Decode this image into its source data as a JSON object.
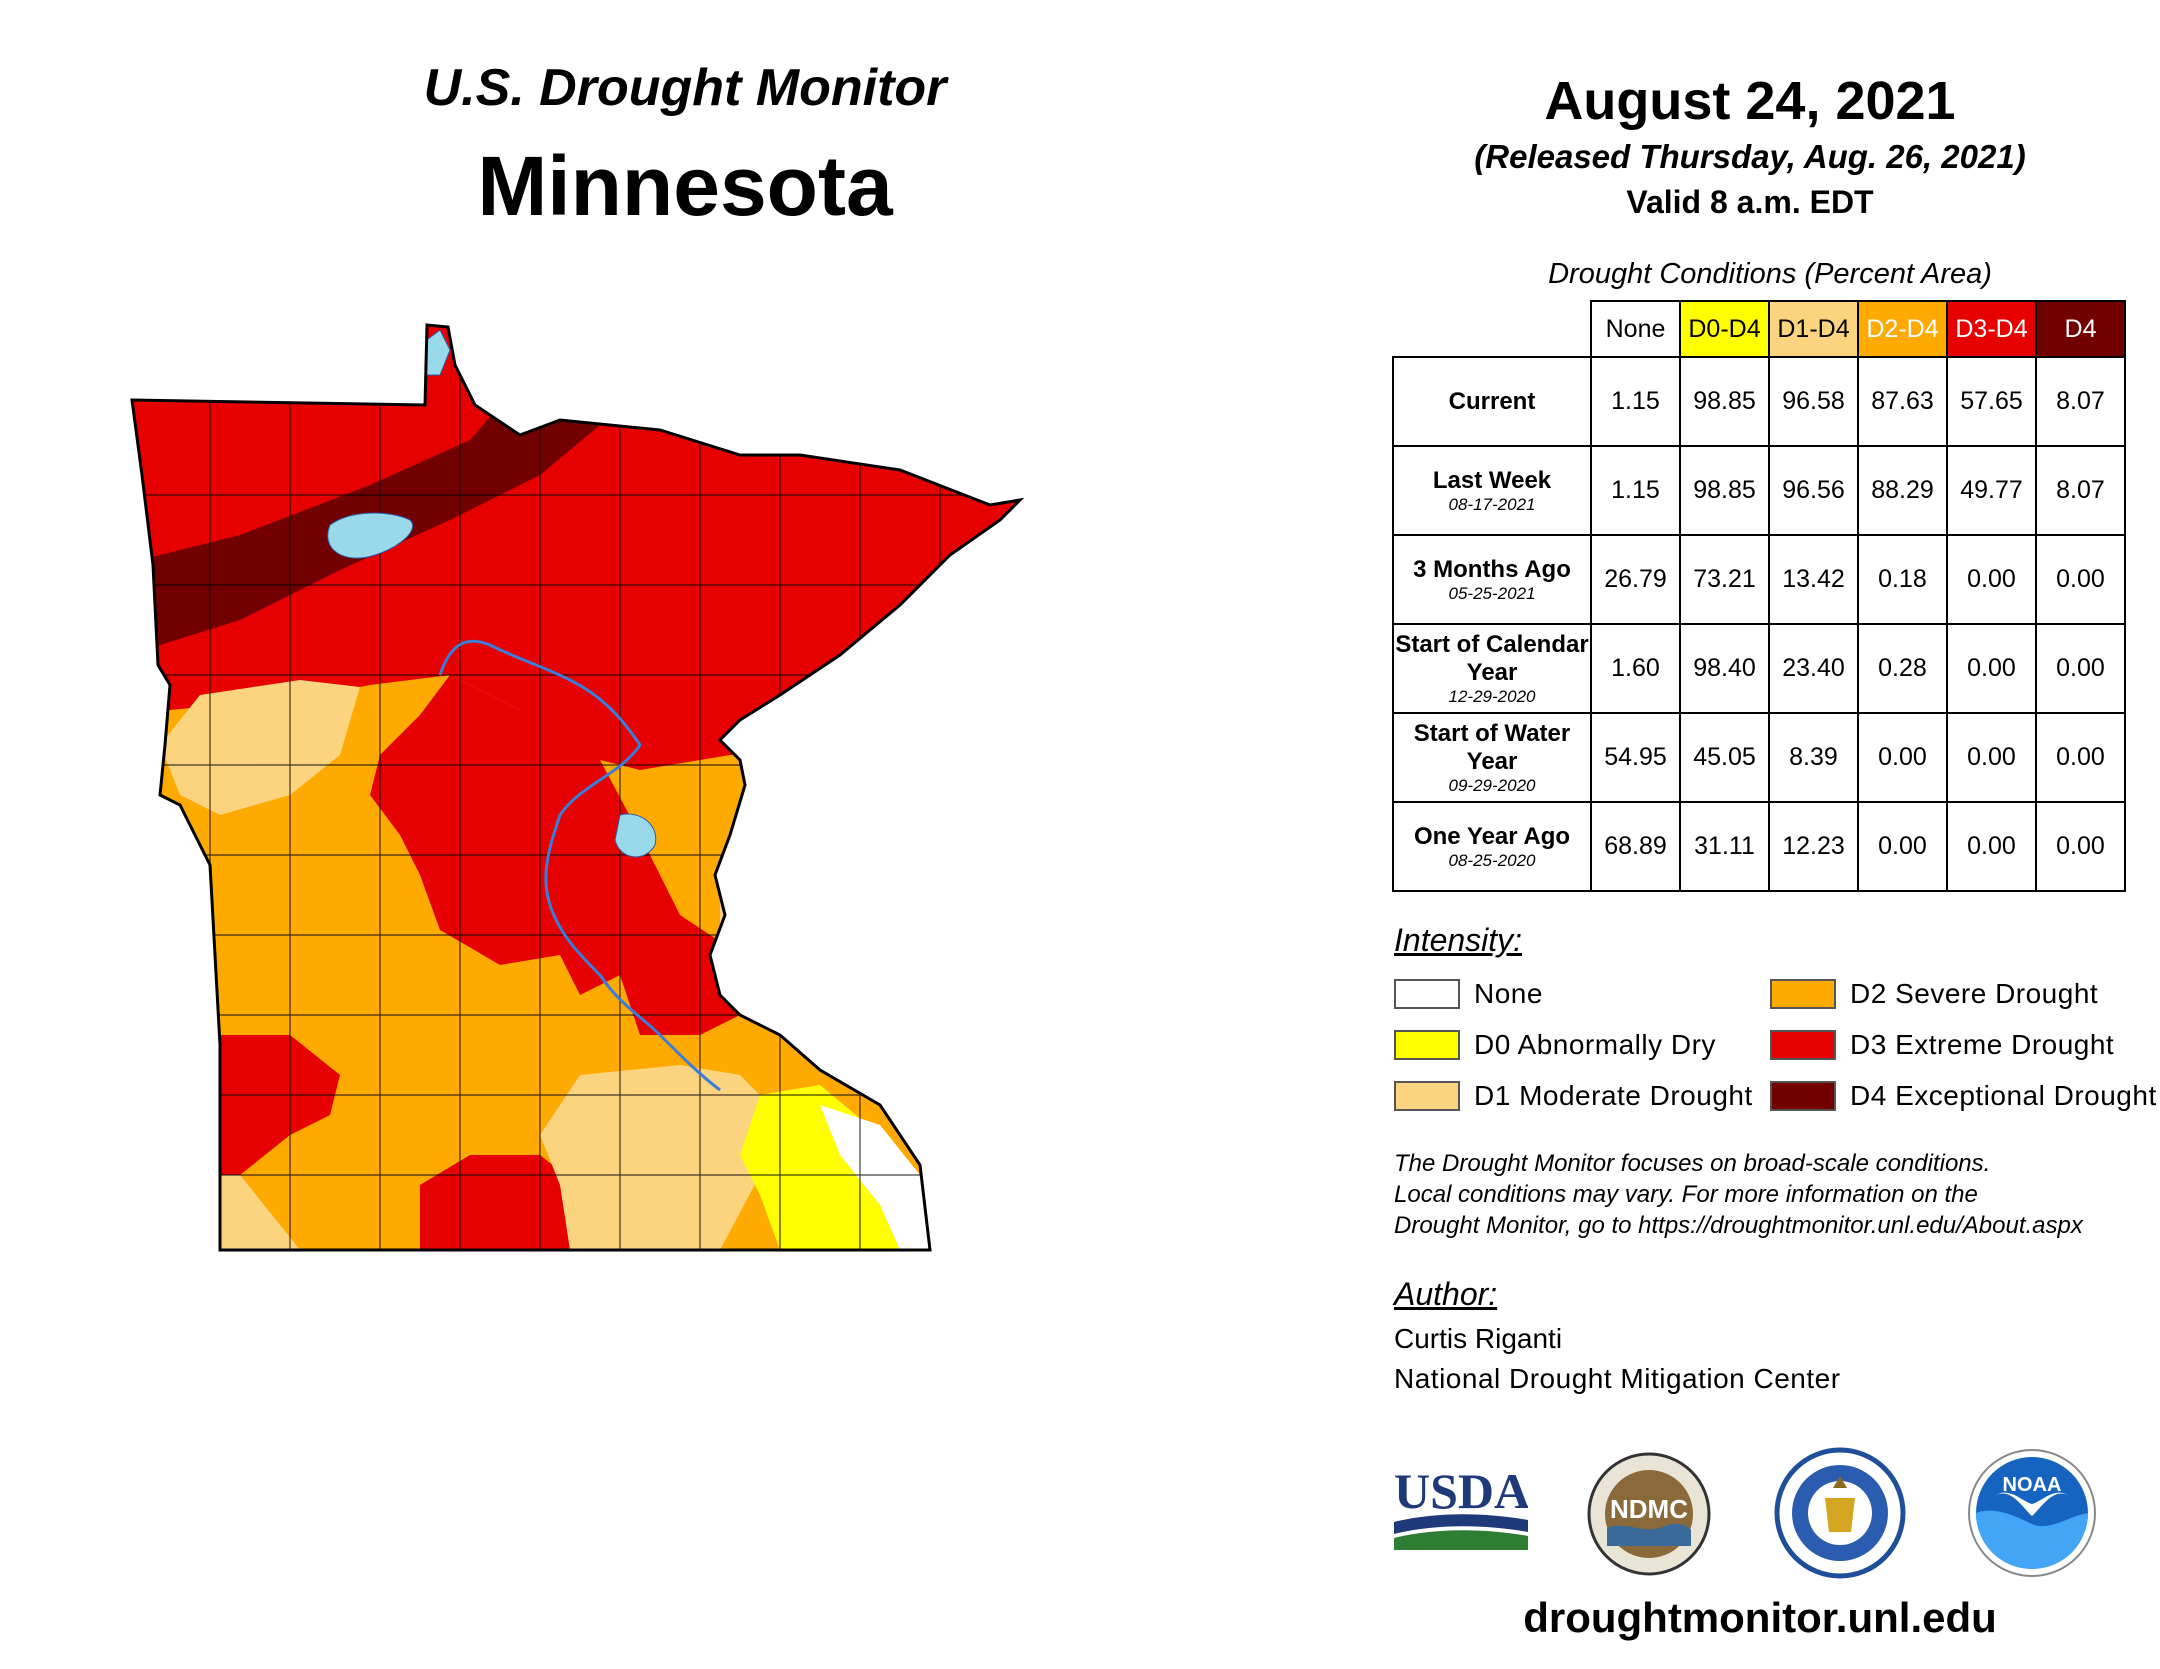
{
  "header": {
    "monitor_title": "U.S. Drought Monitor",
    "state": "Minnesota",
    "date": "August 24, 2021",
    "released": "(Released Thursday, Aug. 26, 2021)",
    "valid": "Valid 8 a.m. EDT"
  },
  "table": {
    "caption": "Drought Conditions (Percent Area)",
    "columns": [
      {
        "label": "None",
        "bg": "#ffffff",
        "fg": "#000000"
      },
      {
        "label": "D0-D4",
        "bg": "#ffff00",
        "fg": "#000000"
      },
      {
        "label": "D1-D4",
        "bg": "#fcd37f",
        "fg": "#000000"
      },
      {
        "label": "D2-D4",
        "bg": "#ffaa00",
        "fg": "#ffffff"
      },
      {
        "label": "D3-D4",
        "bg": "#e60000",
        "fg": "#ffffff"
      },
      {
        "label": "D4",
        "bg": "#730000",
        "fg": "#ffffff"
      }
    ],
    "rows": [
      {
        "label": "Current",
        "date": "",
        "values": [
          "1.15",
          "98.85",
          "96.58",
          "87.63",
          "57.65",
          "8.07"
        ]
      },
      {
        "label": "Last Week",
        "date": "08-17-2021",
        "values": [
          "1.15",
          "98.85",
          "96.56",
          "88.29",
          "49.77",
          "8.07"
        ]
      },
      {
        "label": "3 Months Ago",
        "date": "05-25-2021",
        "values": [
          "26.79",
          "73.21",
          "13.42",
          "0.18",
          "0.00",
          "0.00"
        ]
      },
      {
        "label": "Start of Calendar Year",
        "date": "12-29-2020",
        "values": [
          "1.60",
          "98.40",
          "23.40",
          "0.28",
          "0.00",
          "0.00"
        ]
      },
      {
        "label": "Start of Water Year",
        "date": "09-29-2020",
        "values": [
          "54.95",
          "45.05",
          "8.39",
          "0.00",
          "0.00",
          "0.00"
        ]
      },
      {
        "label": "One Year Ago",
        "date": "08-25-2020",
        "values": [
          "68.89",
          "31.11",
          "12.23",
          "0.00",
          "0.00",
          "0.00"
        ]
      }
    ]
  },
  "legend": {
    "heading": "Intensity:",
    "items": [
      {
        "label": "None",
        "color": "#ffffff"
      },
      {
        "label": "D0 Abnormally Dry",
        "color": "#ffff00"
      },
      {
        "label": "D1 Moderate Drought",
        "color": "#fcd37f"
      },
      {
        "label": "D2 Severe Drought",
        "color": "#ffaa00"
      },
      {
        "label": "D3 Extreme Drought",
        "color": "#e60000"
      },
      {
        "label": "D4 Exceptional Drought",
        "color": "#730000"
      }
    ]
  },
  "note": {
    "line1": "The Drought Monitor focuses on broad-scale conditions.",
    "line2": "Local conditions may vary. For more information on the",
    "line3": "Drought Monitor, go to https://droughtmonitor.unl.edu/About.aspx"
  },
  "author": {
    "heading": "Author:",
    "name": "Curtis Riganti",
    "org": "National Drought Mitigation Center"
  },
  "logos": {
    "usda": "USDA",
    "ndmc": "NDMC",
    "noaa": "NOAA"
  },
  "footer_url": "droughtmonitor.unl.edu",
  "colors": {
    "none": "#ffffff",
    "d0": "#ffff00",
    "d1": "#fcd37f",
    "d2": "#ffaa00",
    "d3": "#e60000",
    "d4": "#730000",
    "water": "#99d9ea",
    "river": "#3b7dd8"
  }
}
